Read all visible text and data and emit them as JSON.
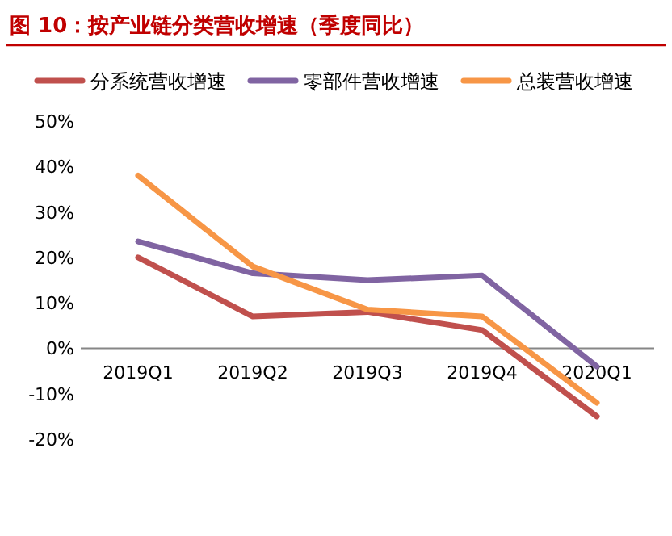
{
  "chart_data": {
    "type": "line",
    "title": "图 10：按产业链分类营收增速（季度同比）",
    "categories": [
      "2019Q1",
      "2019Q2",
      "2019Q3",
      "2019Q4",
      "2020Q1"
    ],
    "series": [
      {
        "name": "分系统营收增速",
        "color": "#c0504d",
        "values": [
          20,
          7,
          8,
          4,
          -15
        ]
      },
      {
        "name": "零部件营收增速",
        "color": "#8064a2",
        "values": [
          23.5,
          16.5,
          15,
          16,
          -4
        ]
      },
      {
        "name": "总装营收增速",
        "color": "#f79646",
        "values": [
          38,
          18,
          8.5,
          7,
          -12
        ]
      }
    ],
    "ylim": [
      -20,
      50
    ],
    "yticks": [
      {
        "value": -20,
        "label": "-20%"
      },
      {
        "value": -10,
        "label": "-10%"
      },
      {
        "value": 0,
        "label": "0%"
      },
      {
        "value": 10,
        "label": "10%"
      },
      {
        "value": 20,
        "label": "20%"
      },
      {
        "value": 30,
        "label": "30%"
      },
      {
        "value": 40,
        "label": "40%"
      },
      {
        "value": 50,
        "label": "50%"
      }
    ],
    "grid": false,
    "legend": "top",
    "marker": "none",
    "line_style": "solid"
  }
}
